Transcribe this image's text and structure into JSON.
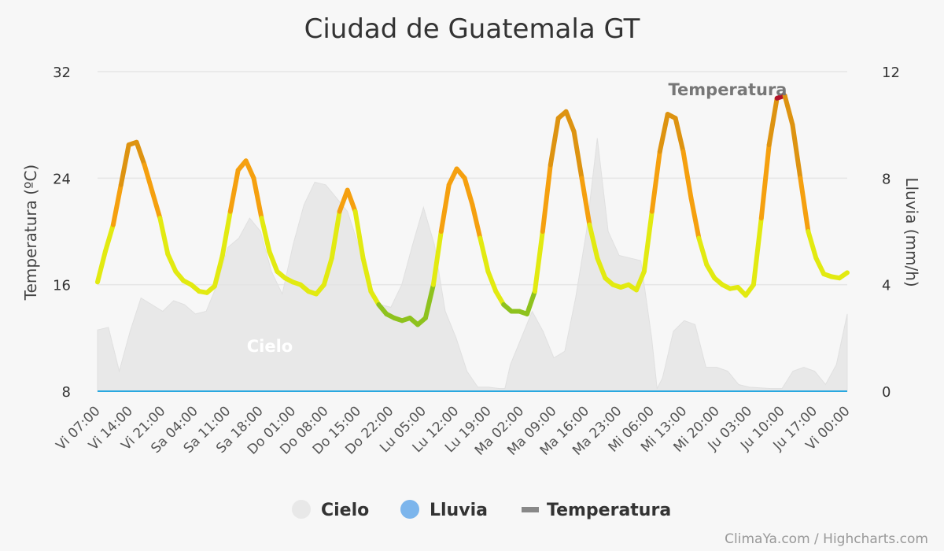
{
  "title": "Ciudad de Guatemala GT",
  "credit": "ClimaYa.com / Highcharts.com",
  "colors": {
    "grid": "#e6e6e6",
    "cloud_fill": "#e3e3e3",
    "rain_line": "#29a8e0",
    "rain_legend": "#7cb5ec",
    "temp_legend": "#888888",
    "temp_green": "#8ec21e",
    "temp_yellow": "#e2ea11",
    "temp_orange": "#f5a00f",
    "temp_dark_orange": "#dd9311",
    "temp_red": "#b2142a"
  },
  "chart_data": {
    "type": "line",
    "title": "Ciudad de Guatemala GT",
    "x_categories": [
      "Vi 07:00",
      "Vi 14:00",
      "Vi 21:00",
      "Sa 04:00",
      "Sa 11:00",
      "Sa 18:00",
      "Do 01:00",
      "Do 08:00",
      "Do 15:00",
      "Do 22:00",
      "Lu 05:00",
      "Lu 12:00",
      "Lu 19:00",
      "Ma 02:00",
      "Ma 09:00",
      "Ma 16:00",
      "Ma 23:00",
      "Mi 06:00",
      "Mi 13:00",
      "Mi 20:00",
      "Ju 03:00",
      "Ju 10:00",
      "Ju 17:00",
      "Vi 00:00"
    ],
    "y_left": {
      "label": "Temperatura (ºC)",
      "min": 8,
      "max": 32,
      "ticks": [
        8,
        16,
        24,
        32
      ]
    },
    "y_right": {
      "label": "Lluvia (mm/h)",
      "min": 0,
      "max": 12,
      "ticks": [
        0,
        4,
        8,
        12
      ]
    },
    "grid": true,
    "legend_position": "bottom-center",
    "legend": [
      "Cielo",
      "Lluvia",
      "Temperatura"
    ],
    "series": [
      {
        "name": "Temperatura",
        "type": "line",
        "axis": "left",
        "points": [
          [
            0,
            16.2
          ],
          [
            1,
            18.5
          ],
          [
            2,
            20.5
          ],
          [
            3,
            23.5
          ],
          [
            4,
            26.5
          ],
          [
            5,
            26.7
          ],
          [
            6,
            25
          ],
          [
            7,
            23
          ],
          [
            8,
            21
          ],
          [
            9,
            18.3
          ],
          [
            10,
            17
          ],
          [
            11,
            16.3
          ],
          [
            12,
            16
          ],
          [
            13,
            15.5
          ],
          [
            14,
            15.4
          ],
          [
            15,
            15.9
          ],
          [
            16,
            18.2
          ],
          [
            17,
            21.5
          ],
          [
            18,
            24.6
          ],
          [
            19,
            25.3
          ],
          [
            20,
            24
          ],
          [
            21,
            21
          ],
          [
            22,
            18.5
          ],
          [
            23,
            17
          ],
          [
            24,
            16.5
          ],
          [
            25,
            16.2
          ],
          [
            26,
            16
          ],
          [
            27,
            15.5
          ],
          [
            28,
            15.3
          ],
          [
            29,
            16
          ],
          [
            30,
            18
          ],
          [
            31,
            21.5
          ],
          [
            32,
            23.1
          ],
          [
            33,
            21.5
          ],
          [
            34,
            18
          ],
          [
            35,
            15.5
          ],
          [
            36,
            14.5
          ],
          [
            37,
            13.8
          ],
          [
            38,
            13.5
          ],
          [
            39,
            13.3
          ],
          [
            40,
            13.5
          ],
          [
            41,
            13
          ],
          [
            42,
            13.5
          ],
          [
            43,
            16
          ],
          [
            44,
            20
          ],
          [
            45,
            23.5
          ],
          [
            46,
            24.7
          ],
          [
            47,
            24
          ],
          [
            48,
            22
          ],
          [
            49,
            19.5
          ],
          [
            50,
            17
          ],
          [
            51,
            15.5
          ],
          [
            52,
            14.5
          ],
          [
            53,
            14
          ],
          [
            54,
            14
          ],
          [
            55,
            13.8
          ],
          [
            56,
            15.5
          ],
          [
            57,
            20
          ],
          [
            58,
            25
          ],
          [
            59,
            28.5
          ],
          [
            60,
            29
          ],
          [
            61,
            27.5
          ],
          [
            62,
            24
          ],
          [
            63,
            20.5
          ],
          [
            64,
            18
          ],
          [
            65,
            16.5
          ],
          [
            66,
            16
          ],
          [
            67,
            15.8
          ],
          [
            68,
            16
          ],
          [
            69,
            15.6
          ],
          [
            70,
            17
          ],
          [
            71,
            21.5
          ],
          [
            72,
            26
          ],
          [
            73,
            28.8
          ],
          [
            74,
            28.5
          ],
          [
            75,
            26
          ],
          [
            76,
            22.5
          ],
          [
            77,
            19.5
          ],
          [
            78,
            17.5
          ],
          [
            79,
            16.5
          ],
          [
            80,
            16
          ],
          [
            81,
            15.7
          ],
          [
            82,
            15.8
          ],
          [
            83,
            15.2
          ],
          [
            84,
            16
          ],
          [
            85,
            21
          ],
          [
            86,
            26.5
          ],
          [
            87,
            30
          ],
          [
            88,
            30.2
          ],
          [
            89,
            28
          ],
          [
            90,
            24
          ],
          [
            91,
            20
          ],
          [
            92,
            18
          ],
          [
            93,
            16.8
          ],
          [
            94,
            16.6
          ],
          [
            95,
            16.5
          ],
          [
            96,
            16.9
          ]
        ]
      },
      {
        "name": "Cielo",
        "type": "area",
        "points": [
          [
            0,
            12.6
          ],
          [
            2,
            12.8
          ],
          [
            4,
            9.5
          ],
          [
            6,
            12.5
          ],
          [
            8,
            15
          ],
          [
            10,
            14.5
          ],
          [
            12,
            14
          ],
          [
            14,
            14.8
          ],
          [
            16,
            14.5
          ],
          [
            18,
            13.8
          ],
          [
            20,
            14
          ],
          [
            22,
            16
          ],
          [
            24,
            18.8
          ],
          [
            26,
            19.5
          ],
          [
            28,
            21
          ],
          [
            30,
            20
          ],
          [
            32,
            17
          ],
          [
            34,
            15.3
          ],
          [
            36,
            19
          ],
          [
            38,
            22
          ],
          [
            40,
            23.7
          ],
          [
            42,
            23.5
          ],
          [
            44,
            22.5
          ],
          [
            46,
            21.5
          ],
          [
            48,
            19
          ],
          [
            50,
            16
          ],
          [
            52,
            14.5
          ],
          [
            54,
            14.3
          ],
          [
            56,
            16
          ],
          [
            58,
            19
          ],
          [
            60,
            21.8
          ],
          [
            62,
            19
          ],
          [
            64,
            14
          ],
          [
            66,
            12
          ],
          [
            68,
            9.5
          ],
          [
            70,
            8.3
          ],
          [
            72,
            8.3
          ],
          [
            74,
            8.2
          ],
          [
            75,
            8.2
          ],
          [
            76,
            10
          ],
          [
            78,
            12
          ],
          [
            80,
            14
          ],
          [
            82,
            12.5
          ],
          [
            84,
            10.5
          ],
          [
            86,
            11
          ],
          [
            88,
            15
          ],
          [
            90,
            20
          ],
          [
            92,
            27
          ],
          [
            94,
            20
          ],
          [
            96,
            18.2
          ],
          [
            98,
            18
          ],
          [
            100,
            17.8
          ],
          [
            102,
            12
          ],
          [
            103,
            8.2
          ],
          [
            104,
            9
          ],
          [
            106,
            12.5
          ],
          [
            108,
            13.3
          ],
          [
            110,
            13
          ],
          [
            112,
            9.8
          ],
          [
            114,
            9.8
          ],
          [
            116,
            9.5
          ],
          [
            118,
            8.5
          ],
          [
            120,
            8.3
          ],
          [
            124,
            8.2
          ],
          [
            126,
            8.2
          ],
          [
            128,
            9.5
          ],
          [
            130,
            9.8
          ],
          [
            132,
            9.5
          ],
          [
            134,
            8.5
          ],
          [
            136,
            10
          ],
          [
            138,
            13.8
          ]
        ]
      },
      {
        "name": "Lluvia",
        "type": "line",
        "axis": "right",
        "value": 0
      }
    ],
    "annotations": [
      {
        "text": "Cielo"
      },
      {
        "text": "Temperatura"
      }
    ]
  }
}
